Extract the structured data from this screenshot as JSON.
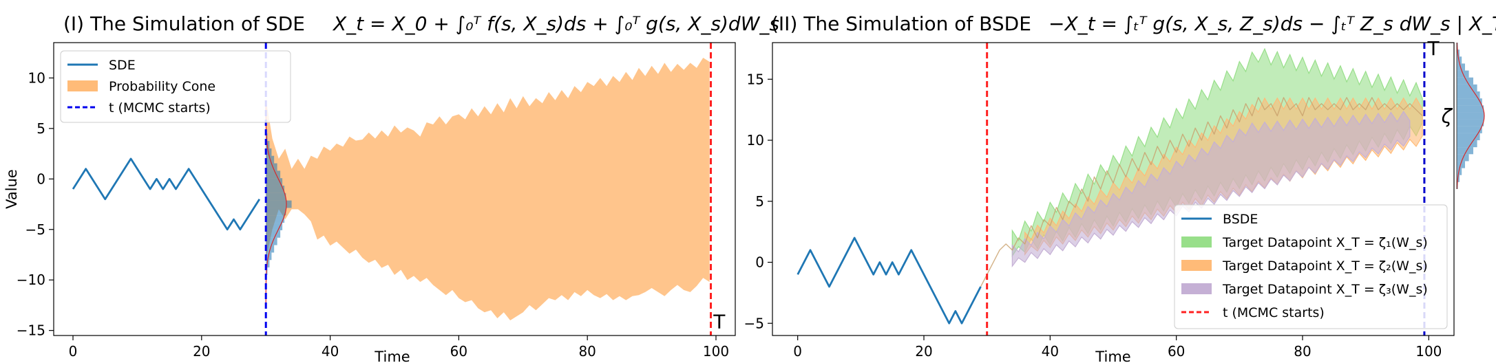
{
  "chart_data": [
    {
      "type": "line",
      "title": "(I) The Simulation of SDE X_t = X_0 + ∫_0^T f(s, X_s)ds + ∫_0^T g(s, X_s)dW_s",
      "title_parts": {
        "prefix": "(I)  The Simulation of SDE ",
        "math": "X_t = X_0 + ∫₀ᵀ f(s, X_s)ds + ∫₀ᵀ g(s, X_s)dW_s"
      },
      "xlabel": "Time",
      "ylabel": "Value",
      "xlim": [
        -3,
        103
      ],
      "ylim": [
        -15.5,
        13.5
      ],
      "xticks": [
        0,
        20,
        40,
        60,
        80,
        100
      ],
      "yticks": [
        -15,
        -10,
        -5,
        0,
        5,
        10
      ],
      "grid": false,
      "legend_position": "top-left",
      "legend": [
        {
          "label": "SDE",
          "kind": "line",
          "color": "#1f77b4"
        },
        {
          "label": "Probability Cone",
          "kind": "patch",
          "color": "#ffbb78"
        },
        {
          "label": "t (MCMC starts)",
          "kind": "dashed",
          "color": "#0000ee"
        }
      ],
      "series": [
        {
          "name": "SDE",
          "color": "#1f77b4",
          "x": [
            0,
            2,
            5,
            9,
            12,
            13,
            14,
            15,
            16,
            18,
            21,
            24,
            25,
            26,
            29
          ],
          "y": [
            -1,
            1,
            -2,
            2,
            -1,
            0,
            -1,
            0,
            -1,
            1,
            -2,
            -5,
            -4,
            -5,
            -2
          ]
        }
      ],
      "cone": {
        "color": "#ffbb78",
        "x": [
          30,
          31,
          32,
          33,
          34,
          35,
          36,
          37,
          38,
          39,
          40,
          41,
          42,
          43,
          44,
          45,
          46,
          47,
          48,
          49,
          50,
          51,
          52,
          53,
          54,
          55,
          56,
          57,
          58,
          59,
          60,
          61,
          62,
          63,
          64,
          65,
          66,
          67,
          68,
          69,
          70,
          71,
          72,
          73,
          74,
          75,
          76,
          77,
          78,
          79,
          80,
          81,
          82,
          83,
          84,
          85,
          86,
          87,
          88,
          89,
          90,
          91,
          92,
          93,
          94,
          95,
          96,
          97,
          98,
          99
        ],
        "upper": [
          8,
          4,
          2,
          3,
          1,
          2,
          1,
          2.3,
          2,
          3.2,
          2.8,
          3.5,
          3.2,
          4.2,
          3.8,
          3.9,
          4.6,
          4,
          4.8,
          4.2,
          5.3,
          4.6,
          5.1,
          4.8,
          4.2,
          5.6,
          5.4,
          6.2,
          5.4,
          6.2,
          6.4,
          5.9,
          7,
          6.2,
          7.2,
          6.4,
          7.5,
          6.6,
          8,
          7,
          8.2,
          7.2,
          8,
          7.5,
          8.6,
          7.8,
          8.8,
          8,
          9.2,
          8.6,
          9.6,
          9.2,
          10,
          9.2,
          10.2,
          9.6,
          10.6,
          9.8,
          11,
          10.2,
          11.2,
          10.4,
          11.5,
          10.6,
          11.4,
          10.8,
          11.5,
          11,
          12,
          11.6
        ],
        "lower": [
          -8,
          -5,
          -3,
          -4,
          -3,
          -3,
          -3.5,
          -4.2,
          -6,
          -5.6,
          -6.6,
          -6.2,
          -6.8,
          -7.4,
          -7,
          -7.8,
          -8.3,
          -8,
          -8.8,
          -8.5,
          -9.5,
          -9,
          -10,
          -9.6,
          -10.2,
          -9.8,
          -10.5,
          -11,
          -11.5,
          -11,
          -11.8,
          -12.2,
          -12,
          -12.8,
          -13.2,
          -13,
          -13.8,
          -13.2,
          -14,
          -13.6,
          -13.2,
          -12.5,
          -13,
          -12.4,
          -11.8,
          -12,
          -11.5,
          -12,
          -11.2,
          -11.6,
          -11,
          -11.5,
          -11.8,
          -11.4,
          -12,
          -11.6,
          -12,
          -11.6,
          -11.5,
          -11.2,
          -10.8,
          -11.2,
          -11.6,
          -11,
          -10.5,
          -11,
          -11.2,
          -10.6,
          -9.8,
          -10.2
        ]
      },
      "density": {
        "x0": 30,
        "center": -2.5,
        "sd": 2.5,
        "peak_width": 4,
        "hist_values": [
          0.3,
          0.7,
          1.1,
          1.6,
          2.2,
          2.8,
          3.2,
          3.6,
          3.9,
          5.0,
          3.9,
          3.6,
          3.2,
          2.8,
          2.2,
          1.6,
          1.1,
          0.7,
          0.3
        ],
        "hist_range": [
          -9.5,
          4.5
        ],
        "hist_color": "#1f77b4",
        "curve_color": "#d62728"
      },
      "vlines": [
        {
          "x": 30,
          "color": "#0000ee",
          "style": "dashed"
        },
        {
          "x": 99.2,
          "color": "#ff2020",
          "style": "dashed"
        }
      ],
      "annotations": [
        {
          "text": "T",
          "x": 99.6,
          "y": -14.8
        }
      ]
    },
    {
      "type": "line",
      "title": "(II) The Simulation of BSDE −X_t = ∫_t^T g(s, X_s, Z_s)ds − ∫_t^T Z_s dW_s | X_T = ζ",
      "title_parts": {
        "prefix": "(II) The Simulation of BSDE ",
        "math": "−X_t = ∫ₜᵀ g(s, X_s, Z_s)ds − ∫ₜᵀ Z_s dW_s | X_T = ζ"
      },
      "xlabel": "Time",
      "ylabel": "",
      "xlim": [
        -4,
        104
      ],
      "ylim": [
        -6,
        18
      ],
      "xticks": [
        0,
        20,
        40,
        60,
        80,
        100
      ],
      "yticks": [
        -5,
        0,
        5,
        10,
        15
      ],
      "grid": false,
      "legend_position": "bottom-right",
      "legend": [
        {
          "label": "BSDE",
          "kind": "line",
          "color": "#1f77b4"
        },
        {
          "label": "Target Datapoint X_T = ζ₁(W_s)",
          "kind": "patch",
          "color": "#98df8a",
          "sub": "1"
        },
        {
          "label": "Target Datapoint X_T = ζ₂(W_s)",
          "kind": "patch",
          "color": "#ffbb78",
          "sub": "2"
        },
        {
          "label": "Target Datapoint X_T = ζ₃(W_s)",
          "kind": "patch",
          "color": "#c5b0d5",
          "sub": "3"
        },
        {
          "label": "t (MCMC starts)",
          "kind": "dashed",
          "color": "#ff2020"
        }
      ],
      "series": [
        {
          "name": "BSDE",
          "color": "#1f77b4",
          "x": [
            0,
            2,
            5,
            9,
            12,
            13,
            14,
            15,
            16,
            18,
            21,
            24,
            25,
            26,
            29
          ],
          "y": [
            -1,
            1,
            -2,
            2,
            -1,
            0,
            -1,
            0,
            -1,
            1,
            -2,
            -5,
            -4,
            -5,
            -2
          ]
        },
        {
          "name": "",
          "color": "#c9a06b",
          "x": [
            29,
            30,
            31,
            32,
            33,
            34,
            35,
            36,
            37,
            38,
            39,
            40,
            41,
            42,
            43,
            44,
            45,
            46,
            47,
            48,
            49,
            50,
            51,
            52,
            53,
            54,
            55,
            56,
            57,
            58,
            59,
            60,
            61,
            62,
            63,
            64,
            65,
            66,
            67,
            68,
            69,
            70,
            71,
            72,
            73,
            74,
            75,
            76,
            77,
            78,
            79,
            80,
            81,
            82,
            83,
            84,
            85,
            86,
            87,
            88,
            89,
            90,
            91,
            92,
            93,
            94,
            95,
            96,
            97,
            98,
            99
          ],
          "y": [
            -2,
            -1,
            0,
            1,
            1.5,
            1,
            2,
            1.5,
            3,
            2,
            3.5,
            3,
            4.5,
            3.5,
            5,
            4.5,
            6,
            5,
            7,
            6,
            7.5,
            6.5,
            8,
            7,
            8.5,
            7.5,
            9,
            8,
            9.5,
            8.5,
            10,
            9,
            10.5,
            9.5,
            11,
            10,
            11.5,
            10.5,
            12,
            11,
            12.5,
            11.5,
            13,
            12,
            13.5,
            12.5,
            13,
            12,
            13.5,
            12.5,
            13,
            12,
            13.5,
            12.5,
            13,
            12.5,
            13,
            12.5,
            13.5,
            12.5,
            13,
            12.5,
            13.5,
            12.5,
            13,
            12.5,
            13,
            12.5,
            13,
            12.5,
            12
          ]
        }
      ],
      "bands": [
        {
          "name": "Target Datapoint X_T = ζ₁(W_s)",
          "color": "#98df8a",
          "x0": 34,
          "x1": 99,
          "start_low": 1,
          "start_high": 2,
          "end_low": 11,
          "end_high": 14,
          "mid_high": 17,
          "wave": 1.2
        },
        {
          "name": "Target Datapoint X_T = ζ₂(W_s)",
          "color": "#ffbb78",
          "x0": 36,
          "x1": 99,
          "start_low": 1,
          "start_high": 2,
          "end_low": 10,
          "end_high": 13,
          "mid_high": 13,
          "wave": 0.9
        },
        {
          "name": "Target Datapoint X_T = ζ₃(W_s)",
          "color": "#c5b0d5",
          "x0": 34,
          "x1": 97,
          "start_low": 0,
          "start_high": 1,
          "end_low": 10,
          "end_high": 12,
          "mid_high": 11,
          "wave": 0.8
        }
      ],
      "vlines": [
        {
          "x": 30,
          "color": "#ff2020",
          "style": "dashed"
        },
        {
          "x": 99.3,
          "color": "#0000cc",
          "style": "dashed"
        }
      ],
      "side_hist": {
        "center": 12,
        "sd": 2,
        "values": [
          0.2,
          0.5,
          0.9,
          1.5,
          2.2,
          3.0,
          3.7,
          4.2,
          4.6,
          4.9,
          5.0,
          4.9,
          4.6,
          4.2,
          3.7,
          3.0,
          2.2,
          1.5,
          0.9,
          0.5,
          0.2
        ],
        "range": [
          6,
          18
        ],
        "color": "#1f77b4",
        "curve_color": "#d62728"
      },
      "annotations": [
        {
          "text": "T",
          "x": 99.8,
          "y": 17
        },
        {
          "text": "ζ",
          "x": 102,
          "y": 12
        }
      ]
    }
  ]
}
